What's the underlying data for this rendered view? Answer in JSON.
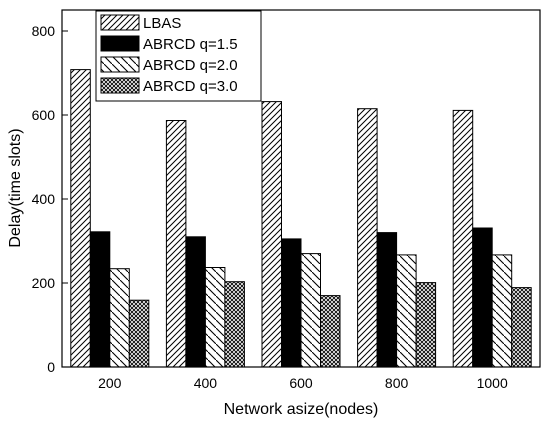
{
  "chart_data": {
    "type": "bar",
    "xlabel": "Network asize(nodes)",
    "ylabel": "Delay(time slots)",
    "categories": [
      "200",
      "400",
      "600",
      "800",
      "1000"
    ],
    "ylim": [
      0,
      850
    ],
    "yticks": [
      0,
      200,
      400,
      600,
      800
    ],
    "ytick_labels": [
      "0",
      "200",
      "400",
      "600",
      "800"
    ],
    "grid": false,
    "legend_position": "top-left",
    "series": [
      {
        "name": "LBAS",
        "values": [
          708,
          587,
          632,
          615,
          611
        ],
        "pattern": "diag-dense",
        "color": "#000000"
      },
      {
        "name": "ABRCD q=1.5",
        "values": [
          322,
          310,
          305,
          320,
          331
        ],
        "pattern": "solid",
        "color": "#000000"
      },
      {
        "name": "ABRCD q=2.0",
        "values": [
          234,
          237,
          270,
          267,
          267
        ],
        "pattern": "diag-back",
        "color": "#000000"
      },
      {
        "name": "ABRCD q=3.0",
        "values": [
          159,
          203,
          170,
          201,
          189
        ],
        "pattern": "crosshatch",
        "color": "#000000"
      }
    ]
  }
}
